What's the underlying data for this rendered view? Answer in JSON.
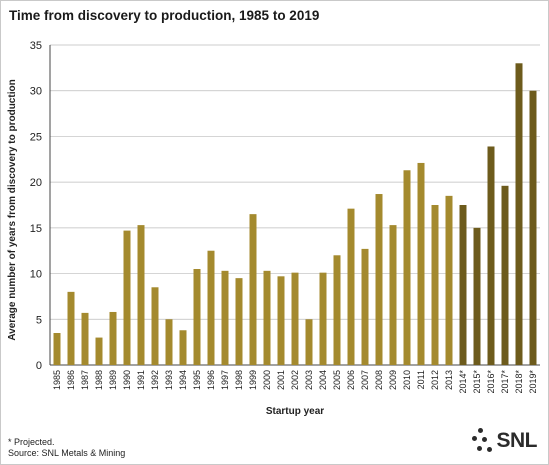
{
  "title": "Time from discovery to production, 1985 to 2019",
  "footnotes": {
    "projected": "* Projected.",
    "source": "Source: SNL Metals & Mining"
  },
  "logo": {
    "text": "SNL"
  },
  "colors": {
    "actual": "#a48a2e",
    "projected": "#6d5b1c",
    "grid": "#bcbcbc",
    "axis": "#444444"
  },
  "chart_data": {
    "type": "bar",
    "xlabel": "Startup year",
    "ylabel": "Average number of years from discovery to production",
    "ylim": [
      0,
      35
    ],
    "yticks": [
      0,
      5,
      10,
      15,
      20,
      25,
      30,
      35
    ],
    "grid": true,
    "categories": [
      "1985",
      "1986",
      "1987",
      "1988",
      "1989",
      "1990",
      "1991",
      "1992",
      "1993",
      "1994",
      "1995",
      "1996",
      "1997",
      "1998",
      "1999",
      "2000",
      "2001",
      "2002",
      "2003",
      "2004",
      "2005",
      "2006",
      "2007",
      "2008",
      "2009",
      "2010",
      "2011",
      "2012",
      "2013",
      "2014*",
      "2015*",
      "2016*",
      "2017*",
      "2018*",
      "2019*"
    ],
    "values": [
      3.5,
      8.0,
      5.7,
      3.0,
      5.8,
      14.7,
      15.3,
      8.5,
      5.0,
      3.8,
      10.5,
      12.5,
      10.3,
      9.5,
      16.5,
      10.3,
      9.7,
      10.1,
      5.0,
      10.1,
      12.0,
      17.1,
      12.7,
      18.7,
      15.3,
      21.3,
      22.1,
      17.5,
      18.5,
      17.5,
      15.0,
      23.9,
      19.6,
      33.0,
      30.0
    ],
    "projected": [
      false,
      false,
      false,
      false,
      false,
      false,
      false,
      false,
      false,
      false,
      false,
      false,
      false,
      false,
      false,
      false,
      false,
      false,
      false,
      false,
      false,
      false,
      false,
      false,
      false,
      false,
      false,
      false,
      false,
      true,
      true,
      true,
      true,
      true,
      true
    ]
  }
}
